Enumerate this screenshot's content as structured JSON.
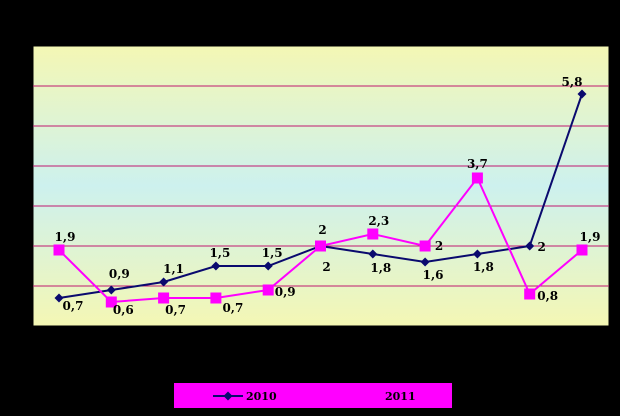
{
  "chart_data": {
    "type": "line",
    "title": "",
    "xlabel": "",
    "ylabel": "",
    "ylim": [
      0,
      7
    ],
    "grid": true,
    "legend_position": "bottom",
    "colors": {
      "background": "#000000",
      "plot_top": "#f4f7b4",
      "plot_mid": "#cdf1ee",
      "plot_bottom": "#f4f7b4",
      "grid": "#c01870",
      "legend_bg": "#ff00ff"
    },
    "x": [
      1,
      2,
      3,
      4,
      5,
      6,
      7,
      8,
      9,
      10,
      11
    ],
    "series": [
      {
        "name": "2010",
        "color": "#0a0a6e",
        "marker": "diamond",
        "values": [
          0.7,
          0.9,
          1.1,
          1.5,
          1.5,
          2,
          1.8,
          1.6,
          1.8,
          2,
          5.8
        ],
        "labels": [
          "0,7",
          "0,9",
          "1,1",
          "1,5",
          "1,5",
          "2",
          "1,8",
          "1,6",
          "1,8",
          "2",
          "5,8"
        ]
      },
      {
        "name": "2011",
        "color": "#ff00ff",
        "marker": "square",
        "values": [
          1.9,
          0.6,
          0.7,
          0.7,
          0.9,
          2,
          2.3,
          2,
          3.7,
          0.8,
          1.9
        ],
        "labels": [
          "1,9",
          "0,6",
          "0,7",
          "0,7",
          "0,9",
          "2",
          "2,3",
          "2",
          "3,7",
          "0,8",
          "1,9"
        ]
      }
    ]
  }
}
